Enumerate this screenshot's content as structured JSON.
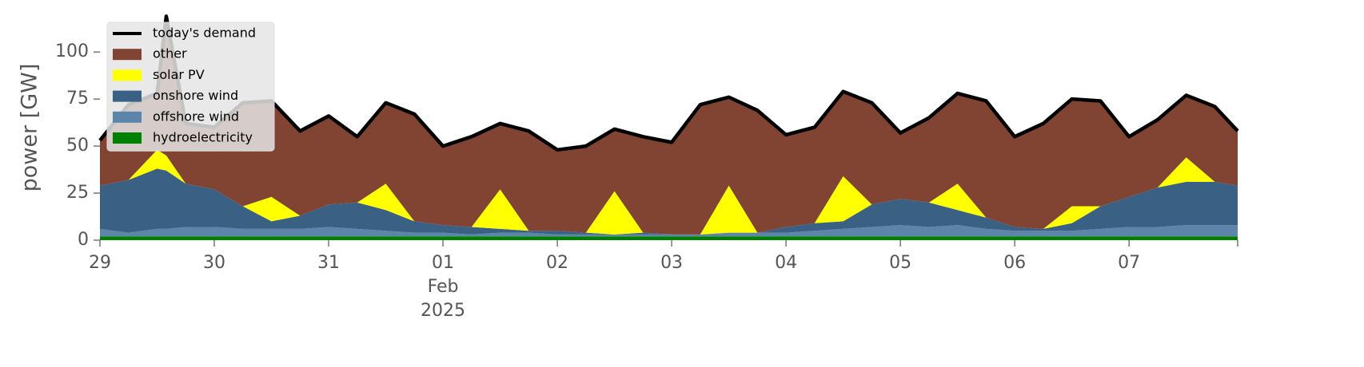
{
  "chart_data": {
    "type": "stacked-area",
    "ylabel": "power [GW]",
    "x": [
      0,
      0.25,
      0.5,
      0.58,
      0.75,
      1.0,
      1.25,
      1.5,
      1.75,
      2.0,
      2.25,
      2.5,
      2.75,
      3.0,
      3.25,
      3.5,
      3.75,
      4.0,
      4.25,
      4.5,
      4.75,
      5.0,
      5.25,
      5.5,
      5.75,
      6.0,
      6.25,
      6.5,
      6.75,
      7.0,
      7.25,
      7.5,
      7.75,
      8.0,
      8.25,
      8.5,
      8.75,
      9.0,
      9.25,
      9.5,
      9.75,
      9.95
    ],
    "xlim": [
      0,
      9.95
    ],
    "xticks": [
      {
        "value": 0,
        "label": "29"
      },
      {
        "value": 1,
        "label": "30"
      },
      {
        "value": 2,
        "label": "31"
      },
      {
        "value": 3,
        "label": "01"
      },
      {
        "value": 4,
        "label": "02"
      },
      {
        "value": 5,
        "label": "03"
      },
      {
        "value": 6,
        "label": "04"
      },
      {
        "value": 7,
        "label": "05"
      },
      {
        "value": 8,
        "label": "06"
      },
      {
        "value": 9,
        "label": "07"
      }
    ],
    "xtick_month": "Feb",
    "xtick_year": "2025",
    "ylim": [
      0,
      120
    ],
    "yticks": [
      0,
      25,
      50,
      75,
      100
    ],
    "legend": "upper left",
    "series": [
      {
        "name": "hydroelectricity",
        "color": "#008000",
        "values": [
          2,
          2,
          2,
          2,
          2,
          2,
          2,
          2,
          2,
          2,
          2,
          2,
          2,
          2,
          2,
          2,
          2,
          2,
          2,
          2,
          2,
          2,
          2,
          2,
          2,
          2,
          2,
          2,
          2,
          2,
          2,
          2,
          2,
          2,
          2,
          2,
          2,
          2,
          2,
          2,
          2,
          2
        ]
      },
      {
        "name": "offshore wind",
        "color": "#5d84a9",
        "values": [
          4,
          2,
          4,
          4,
          5,
          5,
          4,
          4,
          4,
          5,
          4,
          3,
          2,
          2,
          1,
          2,
          2,
          1,
          1,
          1,
          1,
          1,
          1,
          2,
          2,
          2,
          3,
          4,
          5,
          6,
          5,
          6,
          4,
          3,
          3,
          3,
          4,
          5,
          5,
          6,
          6,
          6
        ]
      },
      {
        "name": "onshore wind",
        "color": "#3a6183",
        "values": [
          23,
          28,
          32,
          31,
          23,
          20,
          12,
          4,
          7,
          12,
          14,
          11,
          6,
          4,
          4,
          2,
          1,
          2,
          1,
          0,
          1,
          0,
          0,
          0,
          0,
          3,
          4,
          4,
          12,
          14,
          13,
          8,
          6,
          2,
          1,
          4,
          12,
          16,
          21,
          23,
          23,
          21
        ]
      },
      {
        "name": "solar PV",
        "color": "#ffff00",
        "values": [
          0,
          0,
          10,
          8,
          0,
          0,
          0,
          13,
          0,
          0,
          0,
          14,
          0,
          0,
          0,
          21,
          0,
          0,
          0,
          23,
          0,
          0,
          0,
          25,
          0,
          0,
          0,
          24,
          0,
          0,
          0,
          14,
          0,
          0,
          0,
          9,
          0,
          0,
          0,
          13,
          0,
          0
        ]
      },
      {
        "name": "other",
        "color": "#814332",
        "values": [
          24,
          40,
          30,
          74,
          32,
          33,
          55,
          51,
          45,
          47,
          35,
          43,
          57,
          42,
          48,
          35,
          53,
          43,
          46,
          33,
          51,
          49,
          69,
          47,
          65,
          49,
          51,
          45,
          54,
          35,
          45,
          48,
          62,
          48,
          56,
          57,
          56,
          32,
          36,
          33,
          40,
          29
        ]
      }
    ],
    "line": {
      "name": "today's demand",
      "color": "#000000",
      "values": [
        53,
        72,
        78,
        119,
        62,
        60,
        73,
        74,
        58,
        66,
        55,
        73,
        67,
        50,
        55,
        62,
        58,
        48,
        50,
        59,
        55,
        52,
        72,
        76,
        69,
        56,
        60,
        79,
        73,
        57,
        65,
        78,
        74,
        55,
        62,
        75,
        74,
        55,
        64,
        77,
        71,
        58
      ]
    }
  }
}
